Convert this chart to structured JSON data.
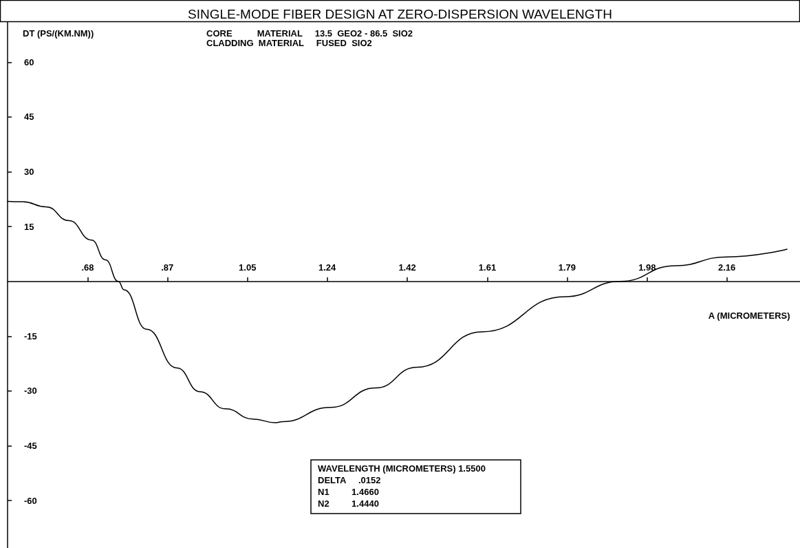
{
  "chart_data": {
    "type": "line",
    "title": "SINGLE-MODE FIBER DESIGN AT ZERO-DISPERSION WAVELENGTH",
    "xlabel": "A (MICROMETERS)",
    "ylabel": "DT (PS/(KM.NM))",
    "annotations": [
      "CORE          MATERIAL     13.5  GEO2 - 86.5  SIO2",
      "CLADDING  MATERIAL     FUSED  SIO2",
      "WAVELENGTH (MICROMETERS) 1.5500",
      "DELTA     .0152",
      "N1         1.4660",
      "N2         1.4440"
    ],
    "x": [
      0.5,
      0.535,
      0.589,
      0.642,
      0.694,
      0.726,
      0.756,
      0.769,
      0.821,
      0.891,
      0.944,
      1.003,
      1.067,
      1.119,
      1.135,
      1.246,
      1.35,
      1.445,
      1.596,
      1.787,
      1.915,
      2.042,
      2.161,
      2.3
    ],
    "series": [
      {
        "color": "#000000",
        "values": [
          21.9,
          21.8,
          20.4,
          16.6,
          11.3,
          5.9,
          0,
          -2.3,
          -13.1,
          -23.7,
          -30.2,
          -34.9,
          -37.7,
          -38.7,
          -38.4,
          -34.5,
          -29.2,
          -23.5,
          -13.8,
          -4.2,
          0,
          4.3,
          6.7,
          8.8
        ]
      }
    ],
    "xlim": [
      0.5,
      2.33
    ],
    "ylim": [
      -73,
      71
    ],
    "xticks": [
      {
        "value": 0.685,
        "label": ".68"
      },
      {
        "value": 0.869,
        "label": ".87"
      },
      {
        "value": 1.054,
        "label": "1.05"
      },
      {
        "value": 1.238,
        "label": "1.24"
      },
      {
        "value": 1.423,
        "label": "1.42"
      },
      {
        "value": 1.608,
        "label": "1.61"
      },
      {
        "value": 1.792,
        "label": "1.79"
      },
      {
        "value": 1.977,
        "label": "1.98"
      },
      {
        "value": 2.161,
        "label": "2.16"
      }
    ],
    "yticks": [
      60,
      45,
      30,
      15,
      -15,
      -30,
      -45,
      -60
    ],
    "grid": false,
    "marker": "none",
    "line_style": "solid"
  }
}
